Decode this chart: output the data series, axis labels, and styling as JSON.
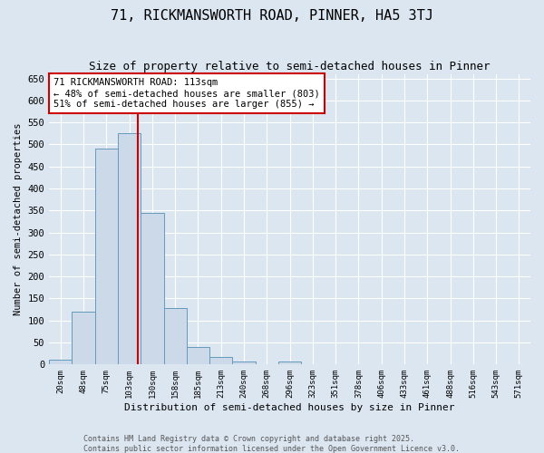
{
  "title": "71, RICKMANSWORTH ROAD, PINNER, HA5 3TJ",
  "subtitle": "Size of property relative to semi-detached houses in Pinner",
  "xlabel": "Distribution of semi-detached houses by size in Pinner",
  "ylabel": "Number of semi-detached properties",
  "bar_labels": [
    "20sqm",
    "48sqm",
    "75sqm",
    "103sqm",
    "130sqm",
    "158sqm",
    "185sqm",
    "213sqm",
    "240sqm",
    "268sqm",
    "296sqm",
    "323sqm",
    "351sqm",
    "378sqm",
    "406sqm",
    "433sqm",
    "461sqm",
    "488sqm",
    "516sqm",
    "543sqm",
    "571sqm"
  ],
  "bar_values": [
    10,
    120,
    490,
    525,
    345,
    128,
    40,
    18,
    7,
    0,
    6,
    0,
    0,
    0,
    0,
    0,
    0,
    0,
    0,
    0,
    0
  ],
  "bar_color": "#ccd9e8",
  "bar_edgecolor": "#6699bb",
  "background_color": "#dce6f0",
  "grid_color": "#ffffff",
  "vline_x_index": 3.37,
  "vline_color": "#cc0000",
  "annotation_title": "71 RICKMANSWORTH ROAD: 113sqm",
  "annotation_line1": "← 48% of semi-detached houses are smaller (803)",
  "annotation_line2": "51% of semi-detached houses are larger (855) →",
  "annotation_box_color": "#ffffff",
  "annotation_box_edgecolor": "#cc0000",
  "ylim": [
    0,
    660
  ],
  "yticks": [
    0,
    50,
    100,
    150,
    200,
    250,
    300,
    350,
    400,
    450,
    500,
    550,
    600,
    650
  ],
  "footer1": "Contains HM Land Registry data © Crown copyright and database right 2025.",
  "footer2": "Contains public sector information licensed under the Open Government Licence v3.0.",
  "title_fontsize": 11,
  "subtitle_fontsize": 9
}
